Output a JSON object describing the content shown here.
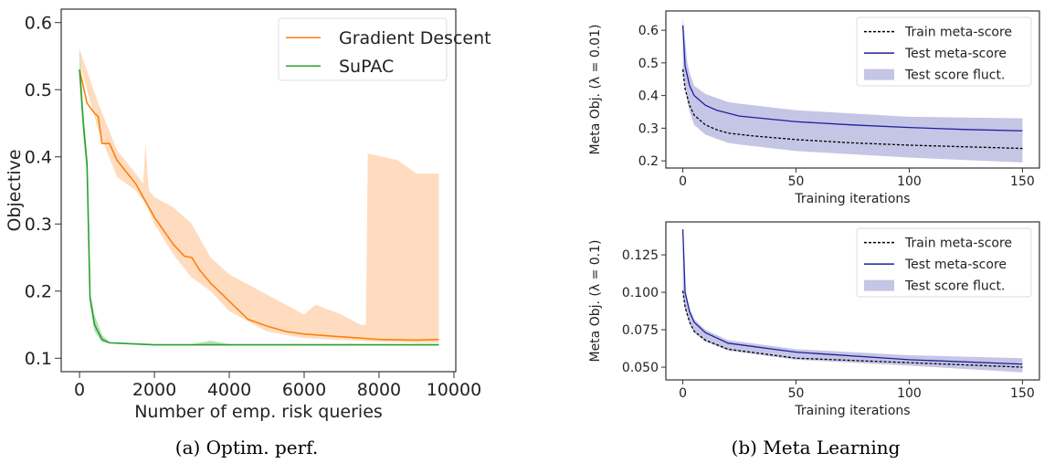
{
  "captions": {
    "a": "(a) Optim. perf.",
    "b": "(b) Meta Learning"
  },
  "chart_data": [
    {
      "type": "line",
      "xlabel": "Number of emp. risk queries",
      "ylabel": "Objective",
      "xlim": [
        -490,
        10050
      ],
      "ylim": [
        0.08,
        0.62
      ],
      "xticks": [
        0,
        2000,
        4000,
        6000,
        8000,
        10000
      ],
      "yticks": [
        0.1,
        0.2,
        0.3,
        0.4,
        0.5,
        0.6
      ],
      "ytick_labels": [
        "0.1",
        "0.2",
        "0.3",
        "0.4",
        "0.5",
        "0.6"
      ],
      "grid": false,
      "legend": "top-right",
      "series": [
        {
          "name": "Gradient Descent",
          "color": "#ff7f0e",
          "band_color": "#ffdcbf",
          "style": "solid",
          "x": [
            0,
            200,
            400,
            500,
            600,
            800,
            1000,
            1500,
            2000,
            2500,
            2800,
            3000,
            3200,
            3500,
            4000,
            4500,
            5000,
            5500,
            6000,
            7000,
            8000,
            9000,
            9600
          ],
          "y": [
            0.53,
            0.48,
            0.465,
            0.46,
            0.42,
            0.42,
            0.395,
            0.36,
            0.31,
            0.27,
            0.252,
            0.25,
            0.232,
            0.212,
            0.185,
            0.158,
            0.148,
            0.14,
            0.136,
            0.132,
            0.128,
            0.127,
            0.128
          ],
          "band_x": [
            0,
            500,
            1000,
            1500,
            1700,
            1760,
            1850,
            2000,
            2500,
            3000,
            3500,
            4000,
            5000,
            6000,
            6300,
            7000,
            7500,
            7650,
            7700,
            8500,
            9000,
            9600
          ],
          "band_upper": [
            0.56,
            0.48,
            0.41,
            0.375,
            0.36,
            0.42,
            0.35,
            0.34,
            0.325,
            0.3,
            0.25,
            0.225,
            0.195,
            0.165,
            0.18,
            0.165,
            0.15,
            0.15,
            0.405,
            0.395,
            0.375,
            0.375
          ],
          "band_lower": [
            0.54,
            0.44,
            0.37,
            0.35,
            0.335,
            0.33,
            0.32,
            0.3,
            0.255,
            0.22,
            0.2,
            0.17,
            0.14,
            0.13,
            0.129,
            0.127,
            0.126,
            0.125,
            0.125,
            0.124,
            0.123,
            0.123
          ]
        },
        {
          "name": "SuPAC",
          "color": "#2ca02c",
          "band_color": "#b8e0b8",
          "style": "solid",
          "x": [
            0,
            100,
            200,
            280,
            400,
            600,
            800,
            2000,
            4000,
            9600
          ],
          "y": [
            0.53,
            0.45,
            0.39,
            0.19,
            0.15,
            0.128,
            0.123,
            0.12,
            0.12,
            0.12
          ],
          "band_x": [
            0,
            100,
            200,
            280,
            400,
            600,
            800,
            2000,
            3000,
            3500,
            4000,
            9600
          ],
          "band_upper": [
            0.565,
            0.47,
            0.4,
            0.2,
            0.165,
            0.135,
            0.124,
            0.121,
            0.121,
            0.126,
            0.121,
            0.121
          ],
          "band_lower": [
            0.52,
            0.43,
            0.37,
            0.18,
            0.14,
            0.124,
            0.122,
            0.119,
            0.119,
            0.119,
            0.119,
            0.119
          ]
        }
      ]
    },
    {
      "type": "line",
      "xlabel": "Training iterations",
      "ylabel": "Meta Obj. (λ = 0.01)",
      "xlim": [
        -7.5,
        157.5
      ],
      "ylim": [
        0.178,
        0.659
      ],
      "xticks": [
        0,
        50,
        100,
        150
      ],
      "yticks": [
        0.2,
        0.3,
        0.4,
        0.5,
        0.6
      ],
      "ytick_labels": [
        "0.2",
        "0.3",
        "0.4",
        "0.5",
        "0.6"
      ],
      "grid": false,
      "legend": "top-right",
      "band_name": "Test score fluct.",
      "band_color": "#c5c5e6",
      "band_x": [
        0,
        2,
        3,
        5,
        10,
        20,
        25,
        50,
        100,
        150
      ],
      "band_upper": [
        0.64,
        0.5,
        0.47,
        0.43,
        0.405,
        0.38,
        0.375,
        0.355,
        0.335,
        0.33
      ],
      "band_lower": [
        0.47,
        0.38,
        0.35,
        0.31,
        0.28,
        0.255,
        0.25,
        0.23,
        0.21,
        0.195
      ],
      "series": [
        {
          "name": "Train meta-score",
          "color": "#000000",
          "style": "dashed",
          "x": [
            0,
            1,
            3,
            5,
            10,
            15,
            20,
            30,
            50,
            75,
            100,
            125,
            150
          ],
          "y": [
            0.48,
            0.42,
            0.37,
            0.34,
            0.31,
            0.295,
            0.285,
            0.277,
            0.265,
            0.255,
            0.248,
            0.243,
            0.238
          ]
        },
        {
          "name": "Test meta-score",
          "color": "#1f1f9c",
          "style": "solid",
          "x": [
            0,
            1,
            3,
            5,
            10,
            15,
            25,
            50,
            75,
            100,
            125,
            150
          ],
          "y": [
            0.615,
            0.49,
            0.43,
            0.4,
            0.37,
            0.355,
            0.337,
            0.32,
            0.31,
            0.302,
            0.296,
            0.292
          ]
        }
      ]
    },
    {
      "type": "line",
      "xlabel": "Training iterations",
      "ylabel": "Meta Obj. (λ = 0.1)",
      "xlim": [
        -7.5,
        157.5
      ],
      "ylim": [
        0.0415,
        0.147
      ],
      "xticks": [
        0,
        50,
        100,
        150
      ],
      "yticks": [
        0.05,
        0.075,
        0.1,
        0.125
      ],
      "ytick_labels": [
        "0.050",
        "0.075",
        "0.100",
        "0.125"
      ],
      "grid": false,
      "legend": "top-right",
      "band_name": "Test score fluct.",
      "band_color": "#c5c5e6",
      "band_x": [
        0,
        1,
        3,
        5,
        10,
        20,
        50,
        100,
        150
      ],
      "band_upper": [
        0.145,
        0.102,
        0.089,
        0.082,
        0.075,
        0.068,
        0.062,
        0.058,
        0.056
      ],
      "band_lower": [
        0.1,
        0.089,
        0.079,
        0.073,
        0.067,
        0.061,
        0.055,
        0.051,
        0.0465
      ],
      "series": [
        {
          "name": "Train meta-score",
          "color": "#000000",
          "style": "dashed",
          "x": [
            0,
            1,
            3,
            5,
            10,
            20,
            50,
            100,
            150
          ],
          "y": [
            0.101,
            0.09,
            0.08,
            0.074,
            0.068,
            0.062,
            0.056,
            0.053,
            0.05
          ]
        },
        {
          "name": "Test meta-score",
          "color": "#1f1f9c",
          "style": "solid",
          "x": [
            0,
            1,
            3,
            5,
            10,
            20,
            50,
            100,
            150
          ],
          "y": [
            0.142,
            0.1,
            0.087,
            0.08,
            0.073,
            0.066,
            0.06,
            0.055,
            0.052
          ]
        }
      ]
    }
  ]
}
